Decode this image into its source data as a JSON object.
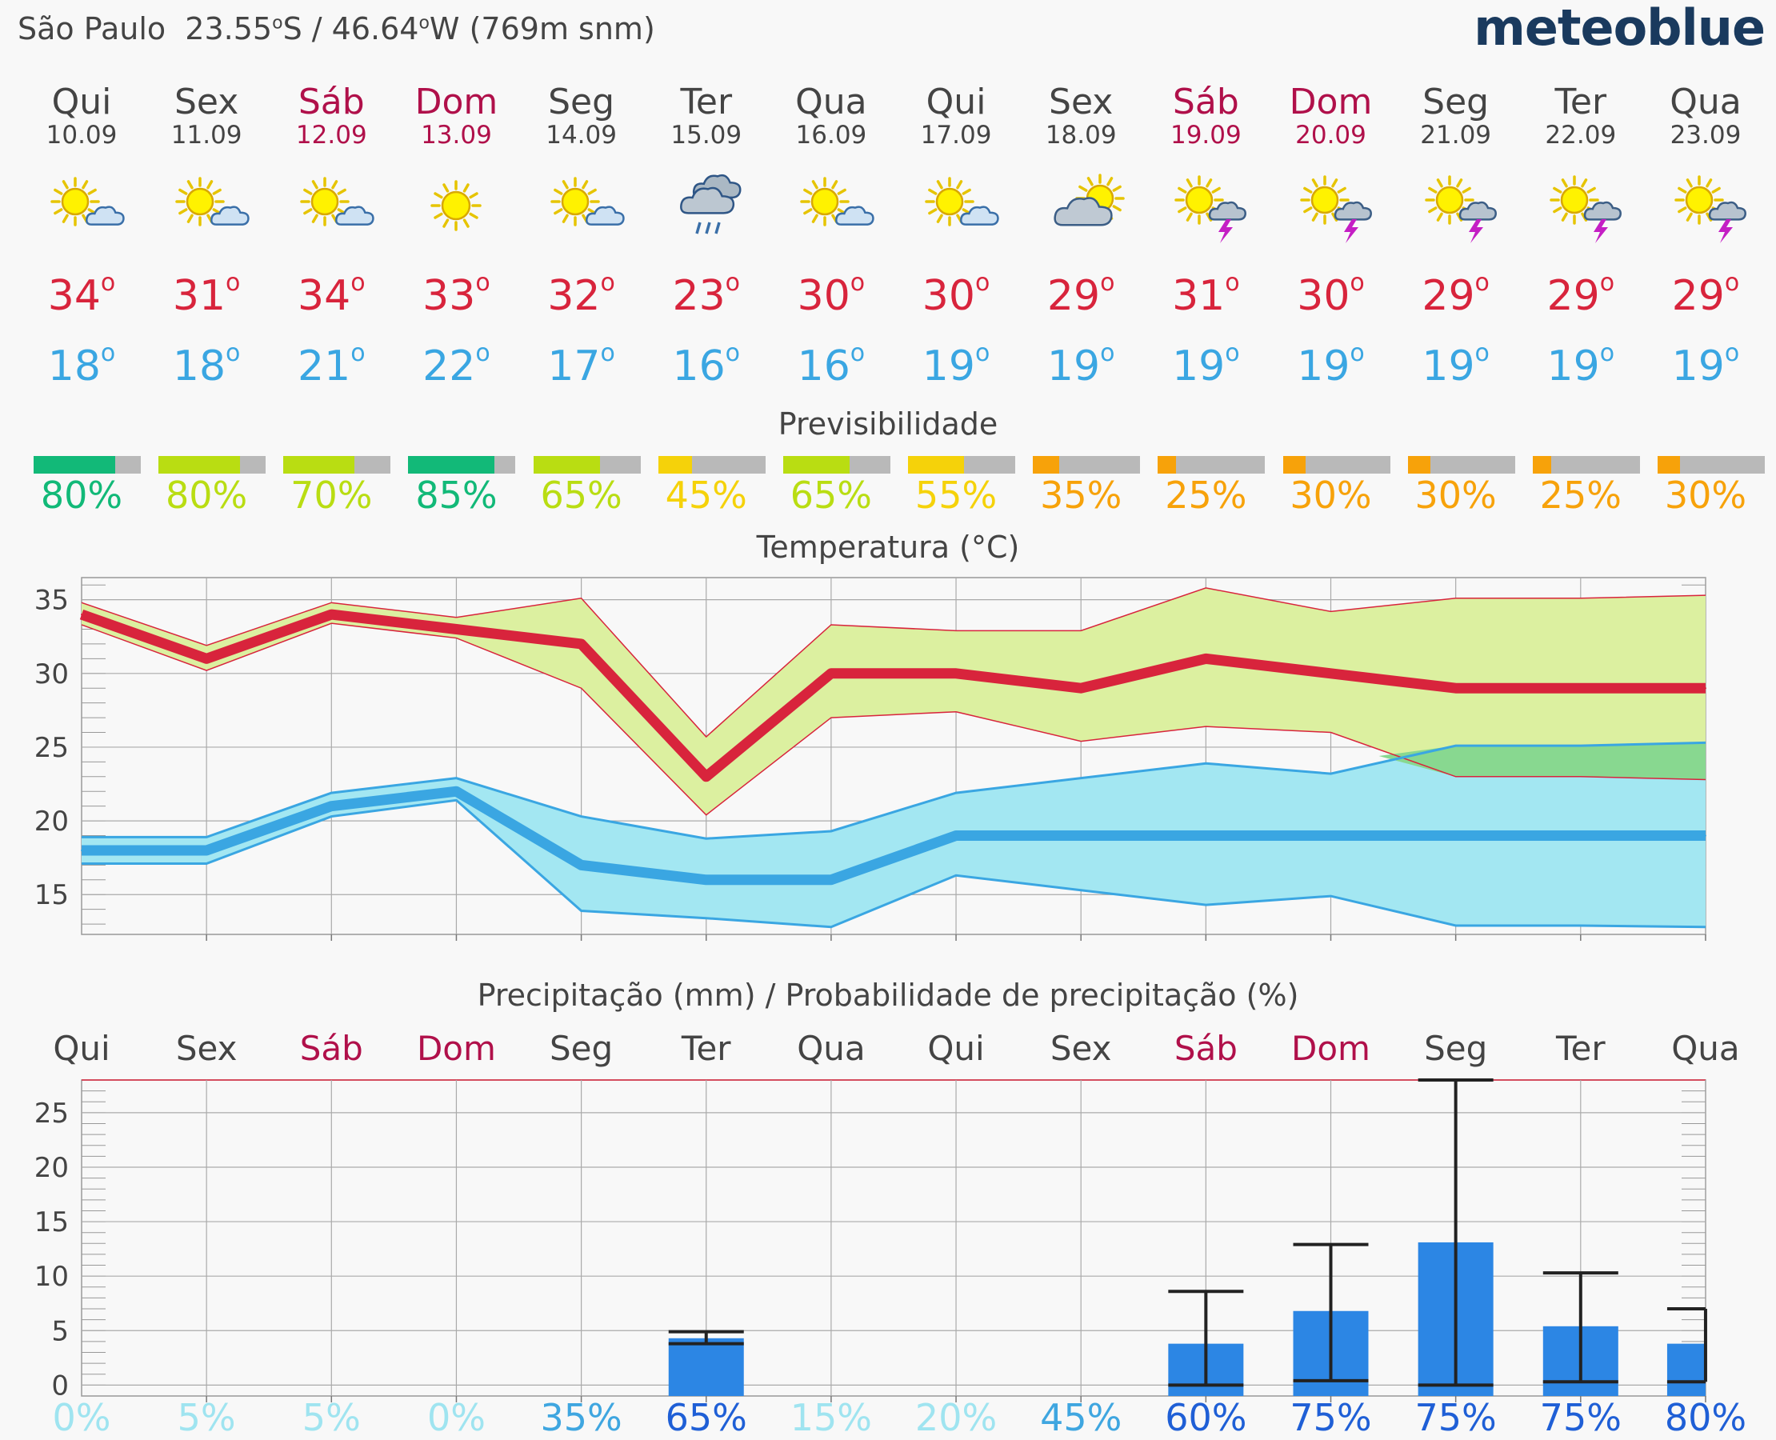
{
  "header": {
    "city": "São Paulo",
    "lat": "23.55",
    "lat_dir": "S",
    "lon": "46.64",
    "lon_dir": "W",
    "elevation": "(769m snm)",
    "brand": "meteoblue"
  },
  "days": [
    {
      "name": "Qui",
      "date": "10.09",
      "weekend": false,
      "icon": "sun-cloud-icon",
      "tmax": "34",
      "tmin": "18",
      "predictability": 80,
      "predictability_label": "80%",
      "pred_color": "#12b978",
      "precip_prob": "0%",
      "prob_color": "#9fe4f0"
    },
    {
      "name": "Sex",
      "date": "11.09",
      "weekend": false,
      "icon": "sun-cloud-icon",
      "tmax": "31",
      "tmin": "18",
      "predictability": 80,
      "predictability_label": "80%",
      "pred_color": "#b9dd12",
      "precip_prob": "5%",
      "prob_color": "#9fe4f0"
    },
    {
      "name": "Sáb",
      "date": "12.09",
      "weekend": true,
      "icon": "sun-cloud-icon",
      "tmax": "34",
      "tmin": "21",
      "predictability": 70,
      "predictability_label": "70%",
      "pred_color": "#b9dd12",
      "precip_prob": "5%",
      "prob_color": "#9fe4f0"
    },
    {
      "name": "Dom",
      "date": "13.09",
      "weekend": true,
      "icon": "sun-icon",
      "tmax": "33",
      "tmin": "22",
      "predictability": 85,
      "predictability_label": "85%",
      "pred_color": "#12b978",
      "precip_prob": "0%",
      "prob_color": "#9fe4f0"
    },
    {
      "name": "Seg",
      "date": "14.09",
      "weekend": false,
      "icon": "sun-cloud-icon",
      "tmax": "32",
      "tmin": "17",
      "predictability": 65,
      "predictability_label": "65%",
      "pred_color": "#b9dd12",
      "precip_prob": "35%",
      "prob_color": "#3fa6e0"
    },
    {
      "name": "Ter",
      "date": "15.09",
      "weekend": false,
      "icon": "rain-cloud-icon",
      "tmax": "23",
      "tmin": "16",
      "predictability": 45,
      "predictability_label": "45%",
      "pred_color": "#f5d20a",
      "precip_prob": "65%",
      "prob_color": "#1f5fd6"
    },
    {
      "name": "Qua",
      "date": "16.09",
      "weekend": false,
      "icon": "sun-cloud-icon",
      "tmax": "30",
      "tmin": "16",
      "predictability": 65,
      "predictability_label": "65%",
      "pred_color": "#b9dd12",
      "precip_prob": "15%",
      "prob_color": "#9fe4f0"
    },
    {
      "name": "Qui",
      "date": "17.09",
      "weekend": false,
      "icon": "sun-cloud-icon",
      "tmax": "30",
      "tmin": "19",
      "predictability": 55,
      "predictability_label": "55%",
      "pred_color": "#f5d20a",
      "precip_prob": "20%",
      "prob_color": "#9fe4f0"
    },
    {
      "name": "Sex",
      "date": "18.09",
      "weekend": false,
      "icon": "cloud-sun-icon",
      "tmax": "29",
      "tmin": "19",
      "predictability": 35,
      "predictability_label": "35%",
      "pred_color": "#f7a20a",
      "precip_prob": "45%",
      "prob_color": "#3fa6e0"
    },
    {
      "name": "Sáb",
      "date": "19.09",
      "weekend": true,
      "icon": "sun-thunder-icon",
      "tmax": "31",
      "tmin": "19",
      "predictability": 25,
      "predictability_label": "25%",
      "pred_color": "#f7a20a",
      "precip_prob": "60%",
      "prob_color": "#1f5fd6"
    },
    {
      "name": "Dom",
      "date": "20.09",
      "weekend": true,
      "icon": "sun-thunder-icon",
      "tmax": "30",
      "tmin": "19",
      "predictability": 30,
      "predictability_label": "30%",
      "pred_color": "#f7a20a",
      "precip_prob": "75%",
      "prob_color": "#1f5fd6"
    },
    {
      "name": "Seg",
      "date": "21.09",
      "weekend": false,
      "icon": "sun-thunder-icon",
      "tmax": "29",
      "tmin": "19",
      "predictability": 30,
      "predictability_label": "30%",
      "pred_color": "#f7a20a",
      "precip_prob": "75%",
      "prob_color": "#1f5fd6"
    },
    {
      "name": "Ter",
      "date": "22.09",
      "weekend": false,
      "icon": "sun-thunder-icon",
      "tmax": "29",
      "tmin": "19",
      "predictability": 25,
      "predictability_label": "25%",
      "pred_color": "#f7a20a",
      "precip_prob": "75%",
      "prob_color": "#1f5fd6"
    },
    {
      "name": "Qua",
      "date": "23.09",
      "weekend": false,
      "icon": "sun-thunder-icon",
      "tmax": "29",
      "tmin": "19",
      "predictability": 30,
      "predictability_label": "30%",
      "pred_color": "#f7a20a",
      "precip_prob": "80%",
      "prob_color": "#1f5fd6"
    }
  ],
  "sections": {
    "predictability_title": "Previsibilidade",
    "temperature_title": "Temperatura (°C)",
    "precip_title": "Precipitação (mm) / Probabilidade de precipitação (%)"
  },
  "colors": {
    "tmax": "#d8243c",
    "tmin": "#3aa6e2",
    "tmax_band": "#dcf0a0",
    "tmin_band": "#a3e7f2",
    "overlap_band": "#88d890",
    "precip_bar": "#2c86e4",
    "weekend": "#b0104a"
  },
  "chart_data": [
    {
      "type": "line",
      "title": "Temperatura (°C)",
      "categories": [
        "10.09",
        "11.09",
        "12.09",
        "13.09",
        "14.09",
        "15.09",
        "16.09",
        "17.09",
        "18.09",
        "19.09",
        "20.09",
        "21.09",
        "22.09",
        "23.09"
      ],
      "ylim": [
        12.3,
        36.5
      ],
      "yticks": [
        15,
        20,
        25,
        30,
        35
      ],
      "grid": true,
      "series": [
        {
          "key": "tmax",
          "values": [
            34,
            31,
            34,
            33,
            32,
            23,
            30,
            30,
            29,
            31,
            30,
            29,
            29,
            29
          ],
          "band_low": [
            33.3,
            30.2,
            33.4,
            32.4,
            29,
            20.4,
            27,
            27.4,
            25.4,
            26.4,
            26,
            23,
            23,
            22.8
          ],
          "band_high": [
            34.8,
            31.9,
            34.8,
            33.8,
            35.1,
            25.7,
            33.3,
            32.9,
            32.9,
            35.8,
            34.2,
            35.1,
            35.1,
            35.3
          ]
        },
        {
          "key": "tmin",
          "values": [
            18,
            18,
            21,
            22,
            17,
            16,
            16,
            19,
            19,
            19,
            19,
            19,
            19,
            19
          ],
          "band_low": [
            17.1,
            17.1,
            20.3,
            21.4,
            13.9,
            13.4,
            12.8,
            16.3,
            15.3,
            14.3,
            14.9,
            12.9,
            12.9,
            12.8
          ],
          "band_high": [
            18.9,
            18.9,
            21.9,
            22.9,
            20.3,
            18.8,
            19.3,
            21.9,
            22.9,
            23.9,
            23.2,
            25.1,
            25.1,
            25.3
          ]
        }
      ]
    },
    {
      "type": "bar",
      "title": "Precipitação (mm) / Probabilidade de precipitação (%)",
      "categories": [
        "Qui",
        "Sex",
        "Sáb",
        "Dom",
        "Seg",
        "Ter",
        "Qua",
        "Qui",
        "Sex",
        "Sáb",
        "Dom",
        "Seg",
        "Ter",
        "Qua"
      ],
      "values": [
        0,
        0,
        0,
        0,
        0,
        4.3,
        0,
        0,
        0,
        3.8,
        6.8,
        13.1,
        5.4,
        3.8
      ],
      "range_low": [
        null,
        null,
        null,
        null,
        null,
        3.8,
        null,
        null,
        null,
        null,
        0.4,
        null,
        0.3,
        0.3
      ],
      "range_high": [
        null,
        null,
        null,
        null,
        null,
        4.9,
        null,
        null,
        null,
        8.6,
        12.9,
        28,
        10.3,
        7
      ],
      "probability": [
        "0%",
        "5%",
        "5%",
        "0%",
        "35%",
        "65%",
        "15%",
        "20%",
        "45%",
        "60%",
        "75%",
        "75%",
        "75%",
        "80%"
      ],
      "ylim": [
        -1,
        28
      ],
      "yticks": [
        0,
        5,
        10,
        15,
        20,
        25
      ],
      "grid": true
    }
  ]
}
